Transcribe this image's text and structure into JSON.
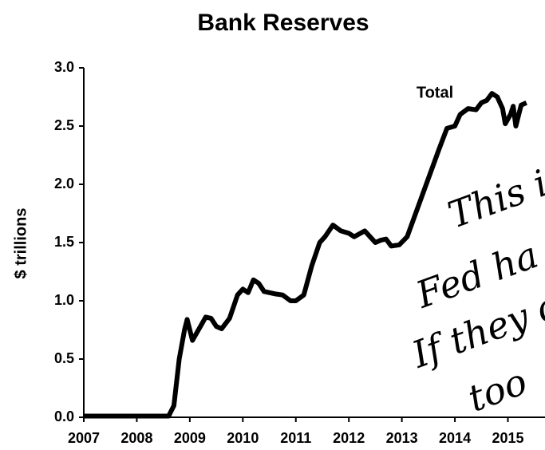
{
  "chart_data": {
    "type": "line",
    "title": "Bank Reserves",
    "y_label": "$ trillions",
    "x": [
      2007.0,
      2008.0,
      2008.6,
      2008.7,
      2008.8,
      2008.9,
      2008.95,
      2009.05,
      2009.2,
      2009.3,
      2009.4,
      2009.5,
      2009.6,
      2009.75,
      2009.9,
      2010.0,
      2010.1,
      2010.2,
      2010.3,
      2010.4,
      2010.6,
      2010.75,
      2010.9,
      2011.0,
      2011.15,
      2011.3,
      2011.45,
      2011.55,
      2011.7,
      2011.85,
      2012.0,
      2012.1,
      2012.3,
      2012.4,
      2012.5,
      2012.6,
      2012.7,
      2012.8,
      2012.95,
      2013.1,
      2013.3,
      2013.5,
      2013.7,
      2013.85,
      2014.0,
      2014.1,
      2014.25,
      2014.4,
      2014.5,
      2014.6,
      2014.7,
      2014.8,
      2014.9,
      2014.95,
      2015.05,
      2015.1,
      2015.15,
      2015.25,
      2015.35
    ],
    "series": [
      {
        "name": "Total",
        "color": "#000000",
        "values": [
          0.01,
          0.01,
          0.01,
          0.1,
          0.5,
          0.75,
          0.84,
          0.66,
          0.78,
          0.86,
          0.85,
          0.78,
          0.76,
          0.85,
          1.05,
          1.1,
          1.07,
          1.18,
          1.15,
          1.08,
          1.06,
          1.05,
          1.0,
          1.0,
          1.05,
          1.3,
          1.5,
          1.55,
          1.65,
          1.6,
          1.58,
          1.55,
          1.6,
          1.55,
          1.5,
          1.52,
          1.53,
          1.47,
          1.48,
          1.55,
          1.8,
          2.05,
          2.3,
          2.48,
          2.5,
          2.6,
          2.65,
          2.64,
          2.7,
          2.72,
          2.78,
          2.75,
          2.65,
          2.52,
          2.6,
          2.67,
          2.5,
          2.68,
          2.7
        ]
      }
    ],
    "xlim": [
      2007,
      2015.7
    ],
    "xticks": [
      2007,
      2008,
      2009,
      2010,
      2011,
      2012,
      2013,
      2014,
      2015
    ],
    "ylim": [
      0,
      3
    ],
    "yticks": [
      {
        "value": 0,
        "label": "0.0"
      },
      {
        "value": 0.5,
        "label": "0.5"
      },
      {
        "value": 1,
        "label": "1.0"
      },
      {
        "value": 1.5,
        "label": "1.5"
      },
      {
        "value": 2,
        "label": "2.0"
      },
      {
        "value": 2.5,
        "label": "2.5"
      },
      {
        "value": 3,
        "label": "3.0"
      }
    ],
    "grid": false,
    "annotations": [
      "This i",
      "Fed ha",
      "If they d",
      "too"
    ]
  }
}
